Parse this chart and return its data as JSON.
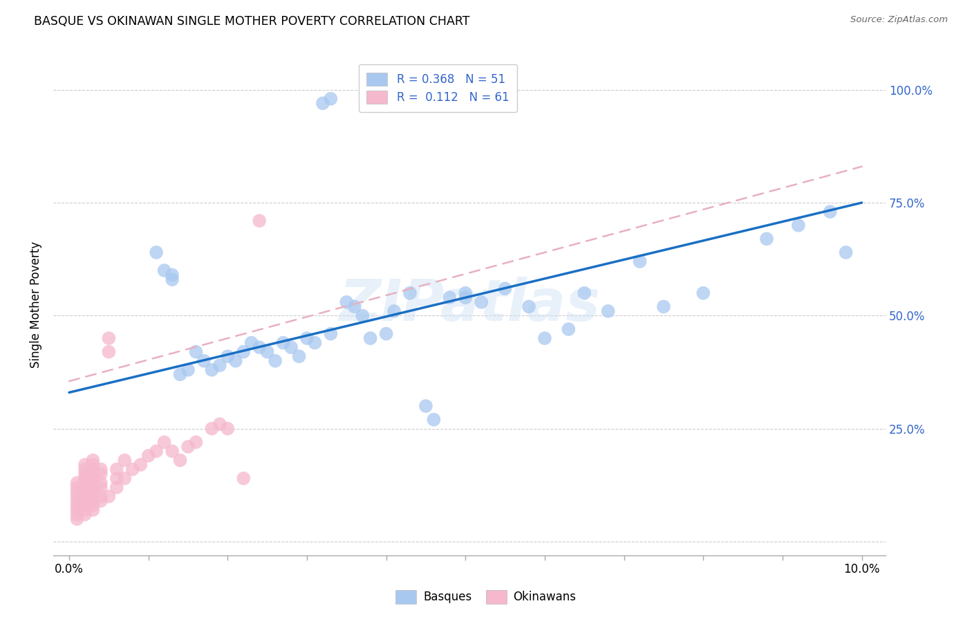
{
  "title": "BASQUE VS OKINAWAN SINGLE MOTHER POVERTY CORRELATION CHART",
  "source": "Source: ZipAtlas.com",
  "ylabel": "Single Mother Poverty",
  "y_ticks": [
    0.0,
    0.25,
    0.5,
    0.75,
    1.0
  ],
  "x_ticks": [
    0.0,
    0.01,
    0.02,
    0.03,
    0.04,
    0.05,
    0.06,
    0.07,
    0.08,
    0.09,
    0.1
  ],
  "xlim": [
    -0.002,
    0.103
  ],
  "ylim": [
    -0.03,
    1.08
  ],
  "basque_R": 0.368,
  "basque_N": 51,
  "okinawan_R": 0.112,
  "okinawan_N": 61,
  "basque_color": "#a8c8f0",
  "okinawan_color": "#f5b8cc",
  "basque_line_color": "#1a6fc4",
  "okinawan_line_color": "#e8b0c0",
  "legend_text_color": "#3366cc",
  "watermark": "ZIPatlas",
  "basque_line_x0": 0.0,
  "basque_line_y0": 0.33,
  "basque_line_x1": 0.1,
  "basque_line_y1": 0.75,
  "okinawan_line_x0": 0.0,
  "okinawan_line_y0": 0.355,
  "okinawan_line_x1": 0.1,
  "okinawan_line_y1": 0.83,
  "basque_x": [
    0.032,
    0.033,
    0.011,
    0.012,
    0.013,
    0.013,
    0.014,
    0.015,
    0.016,
    0.017,
    0.018,
    0.019,
    0.02,
    0.021,
    0.022,
    0.023,
    0.024,
    0.025,
    0.026,
    0.027,
    0.028,
    0.029,
    0.03,
    0.031,
    0.033,
    0.035,
    0.036,
    0.037,
    0.038,
    0.04,
    0.041,
    0.043,
    0.045,
    0.046,
    0.048,
    0.05,
    0.05,
    0.052,
    0.055,
    0.058,
    0.06,
    0.063,
    0.065,
    0.068,
    0.072,
    0.075,
    0.08,
    0.088,
    0.092,
    0.096,
    0.098
  ],
  "basque_y": [
    0.97,
    0.98,
    0.64,
    0.6,
    0.59,
    0.58,
    0.37,
    0.38,
    0.42,
    0.4,
    0.38,
    0.39,
    0.41,
    0.4,
    0.42,
    0.44,
    0.43,
    0.42,
    0.4,
    0.44,
    0.43,
    0.41,
    0.45,
    0.44,
    0.46,
    0.53,
    0.52,
    0.5,
    0.45,
    0.46,
    0.51,
    0.55,
    0.3,
    0.27,
    0.54,
    0.55,
    0.54,
    0.53,
    0.56,
    0.52,
    0.45,
    0.47,
    0.55,
    0.51,
    0.62,
    0.52,
    0.55,
    0.67,
    0.7,
    0.73,
    0.64
  ],
  "okinawan_x": [
    0.001,
    0.001,
    0.001,
    0.001,
    0.001,
    0.001,
    0.001,
    0.001,
    0.001,
    0.002,
    0.002,
    0.002,
    0.002,
    0.002,
    0.002,
    0.002,
    0.002,
    0.002,
    0.002,
    0.002,
    0.002,
    0.003,
    0.003,
    0.003,
    0.003,
    0.003,
    0.003,
    0.003,
    0.003,
    0.003,
    0.003,
    0.003,
    0.003,
    0.004,
    0.004,
    0.004,
    0.004,
    0.004,
    0.004,
    0.005,
    0.005,
    0.005,
    0.006,
    0.006,
    0.006,
    0.007,
    0.007,
    0.008,
    0.009,
    0.01,
    0.011,
    0.012,
    0.013,
    0.014,
    0.015,
    0.016,
    0.018,
    0.019,
    0.02,
    0.022,
    0.024
  ],
  "okinawan_y": [
    0.05,
    0.06,
    0.07,
    0.08,
    0.09,
    0.1,
    0.11,
    0.12,
    0.13,
    0.06,
    0.07,
    0.08,
    0.09,
    0.1,
    0.11,
    0.12,
    0.13,
    0.14,
    0.15,
    0.16,
    0.17,
    0.07,
    0.08,
    0.09,
    0.1,
    0.11,
    0.12,
    0.13,
    0.14,
    0.15,
    0.16,
    0.17,
    0.18,
    0.09,
    0.1,
    0.12,
    0.13,
    0.15,
    0.16,
    0.1,
    0.42,
    0.45,
    0.12,
    0.14,
    0.16,
    0.14,
    0.18,
    0.16,
    0.17,
    0.19,
    0.2,
    0.22,
    0.2,
    0.18,
    0.21,
    0.22,
    0.25,
    0.26,
    0.25,
    0.14,
    0.71
  ]
}
